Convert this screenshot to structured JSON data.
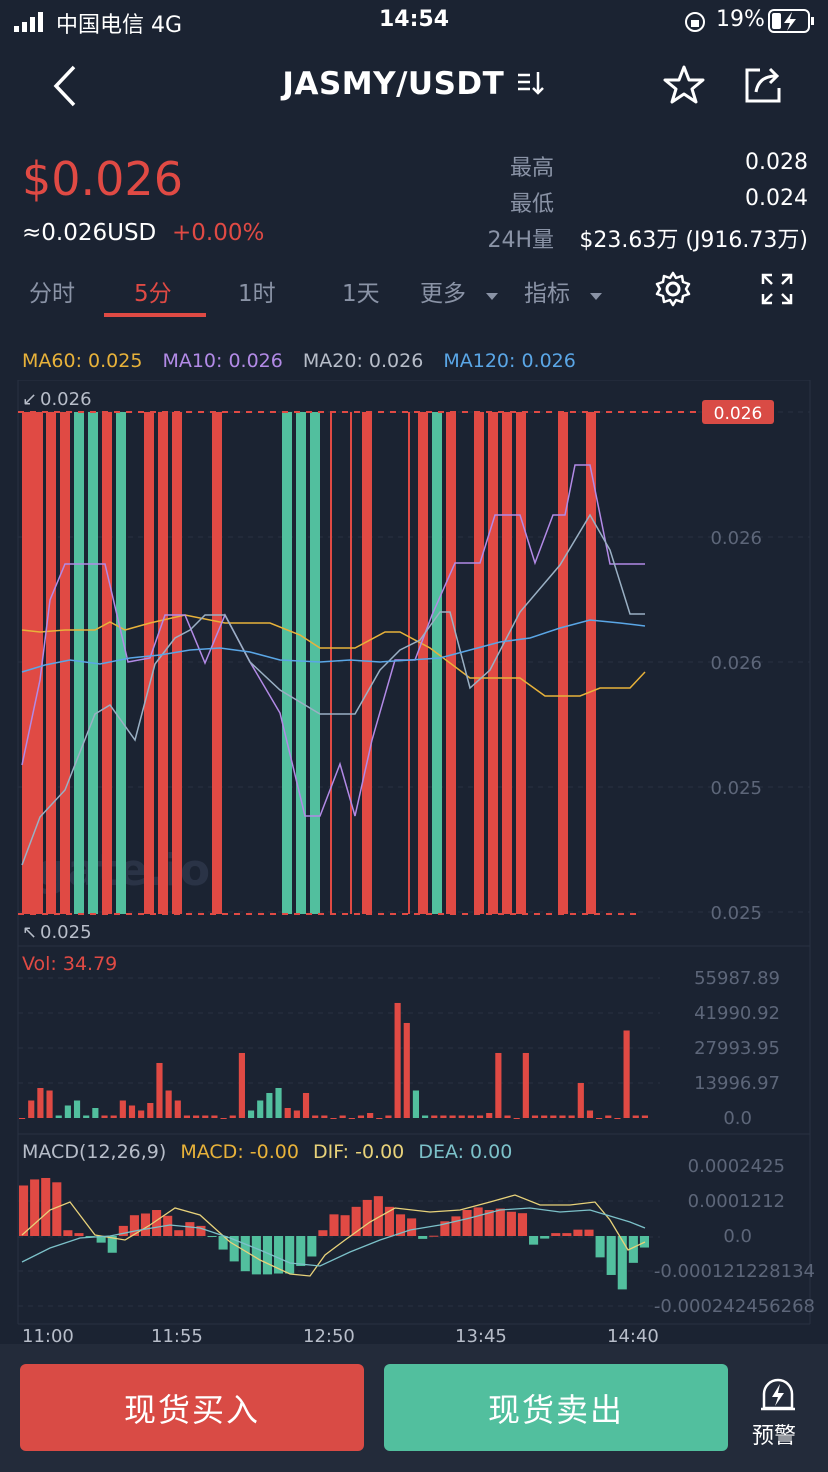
{
  "status_bar": {
    "carrier": "中国电信  4G",
    "time": "14:54",
    "battery": "19%"
  },
  "header": {
    "title": "JASMY/USDT"
  },
  "ticker": {
    "price": "$0.026",
    "usd": "≈0.026USD",
    "change": "+0.00%",
    "high_label": "最高",
    "high_value": "0.028",
    "low_label": "最低",
    "low_value": "0.024",
    "vol_label": "24H量",
    "vol_value": "$23.63万 (J916.73万)"
  },
  "tabs": [
    "分时",
    "5分",
    "1时",
    "1天",
    "更多",
    "指标"
  ],
  "ma": {
    "ma60": "MA60: 0.025",
    "ma10": "MA10: 0.026",
    "ma20": "MA20: 0.026",
    "ma120": "MA120: 0.026"
  },
  "main_chart": {
    "max_label": "0.026",
    "min_label": "0.025",
    "current_price_tag": "0.026",
    "y_ticks": [
      "0.026",
      "0.026",
      "0.025",
      "0.025"
    ],
    "watermark": "gate.io"
  },
  "volume": {
    "title": "Vol: 34.79",
    "ticks": [
      "55987.89",
      "41990.92",
      "27993.95",
      "13996.97",
      "0.0"
    ]
  },
  "macd": {
    "title": "MACD(12,26,9)",
    "macd": "MACD: -0.00",
    "dif": "DIF: -0.00",
    "dea": "DEA: 0.00",
    "ticks": [
      "0.0002425",
      "0.0001212",
      "0.0",
      "-0.000121228134",
      "-0.000242456268"
    ]
  },
  "time_axis": [
    "11:00",
    "11:55",
    "12:50",
    "13:45",
    "14:40"
  ],
  "actions": {
    "buy": "现货买入",
    "sell": "现货卖出",
    "alert": "预警"
  },
  "colors": {
    "up": "#e04a44",
    "down": "#52bf9e",
    "ma60": "#e8b23a",
    "ma10": "#b28ae6",
    "ma20": "#b7bdc9",
    "ma120": "#5aa6e6",
    "bg": "#1b2332"
  },
  "chart_data": [
    {
      "type": "bar",
      "title": "Vol: 34.79",
      "ylim": [
        0,
        55987.89
      ],
      "values": [
        0,
        7000,
        12000,
        11000,
        1000,
        5000,
        7000,
        1000,
        4000,
        1000,
        1000,
        7000,
        5000,
        3000,
        6000,
        22000,
        11000,
        7000,
        1000,
        1000,
        1000,
        1000,
        0,
        1000,
        26000,
        3000,
        7000,
        10000,
        12000,
        4000,
        3000,
        10000,
        1000,
        1000,
        0,
        1000,
        0,
        1000,
        2000,
        0,
        1000,
        46000,
        38000,
        11000,
        1000,
        1000,
        1000,
        1000,
        1000,
        1000,
        1000,
        2000,
        26000,
        1000,
        0,
        26000,
        1000,
        1000,
        1000,
        1000,
        1000,
        14000,
        3000,
        0,
        1000,
        0,
        35000,
        1000,
        1000
      ],
      "up": [
        1,
        1,
        1,
        1,
        0,
        0,
        0,
        0,
        0,
        1,
        1,
        1,
        1,
        1,
        1,
        1,
        1,
        1,
        1,
        1,
        1,
        1,
        1,
        1,
        1,
        0,
        0,
        0,
        0,
        1,
        1,
        1,
        1,
        1,
        1,
        1,
        1,
        1,
        1,
        1,
        1,
        1,
        1,
        0,
        0,
        1,
        1,
        1,
        1,
        1,
        1,
        1,
        1,
        1,
        1,
        1,
        1,
        1,
        1,
        1,
        1,
        1,
        1,
        1,
        1,
        1,
        1,
        1,
        1
      ]
    },
    {
      "type": "bar",
      "title": "MACD(12,26,9)",
      "ylim": [
        -0.000242456268,
        0.0002425
      ],
      "values": [
        0.000175,
        0.000196,
        0.000201,
        0.000186,
        2e-05,
        1e-05,
        -4e-06,
        -2.3e-05,
        -5.8e-05,
        3.5e-05,
        7.2e-05,
        7.8e-05,
        9e-05,
        7e-05,
        2e-05,
        4.8e-05,
        3.5e-05,
        -2e-06,
        -4.7e-05,
        -8.8e-05,
        -0.000122,
        -0.000133,
        -0.000133,
        -0.00013,
        -0.00013,
        -0.000104,
        -7.1e-05,
        2e-05,
        7.5e-05,
        7.2e-05,
        0.000101,
        0.000125,
        0.000138,
        0.000101,
        7.5e-05,
        6.1e-05,
        -1e-05,
        1e-06,
        5.1e-05,
        6.8e-05,
        9e-05,
        9.9e-05,
        9e-05,
        9.5e-05,
        8.4e-05,
        7.9e-05,
        -3e-05,
        -9e-06,
        1e-05,
        1e-05,
        2.2e-05,
        2.2e-05,
        -7.4e-05,
        -0.000135,
        -0.000185,
        -9.3e-05,
        -4e-05
      ],
      "up": [
        1,
        1,
        1,
        1,
        1,
        1,
        0,
        0,
        0,
        1,
        1,
        1,
        1,
        1,
        1,
        1,
        1,
        0,
        0,
        0,
        0,
        0,
        0,
        0,
        0,
        0,
        0,
        1,
        1,
        1,
        1,
        1,
        1,
        1,
        1,
        1,
        0,
        1,
        1,
        1,
        1,
        1,
        1,
        1,
        1,
        1,
        0,
        0,
        1,
        1,
        1,
        1,
        0,
        0,
        0,
        0,
        0
      ]
    }
  ]
}
